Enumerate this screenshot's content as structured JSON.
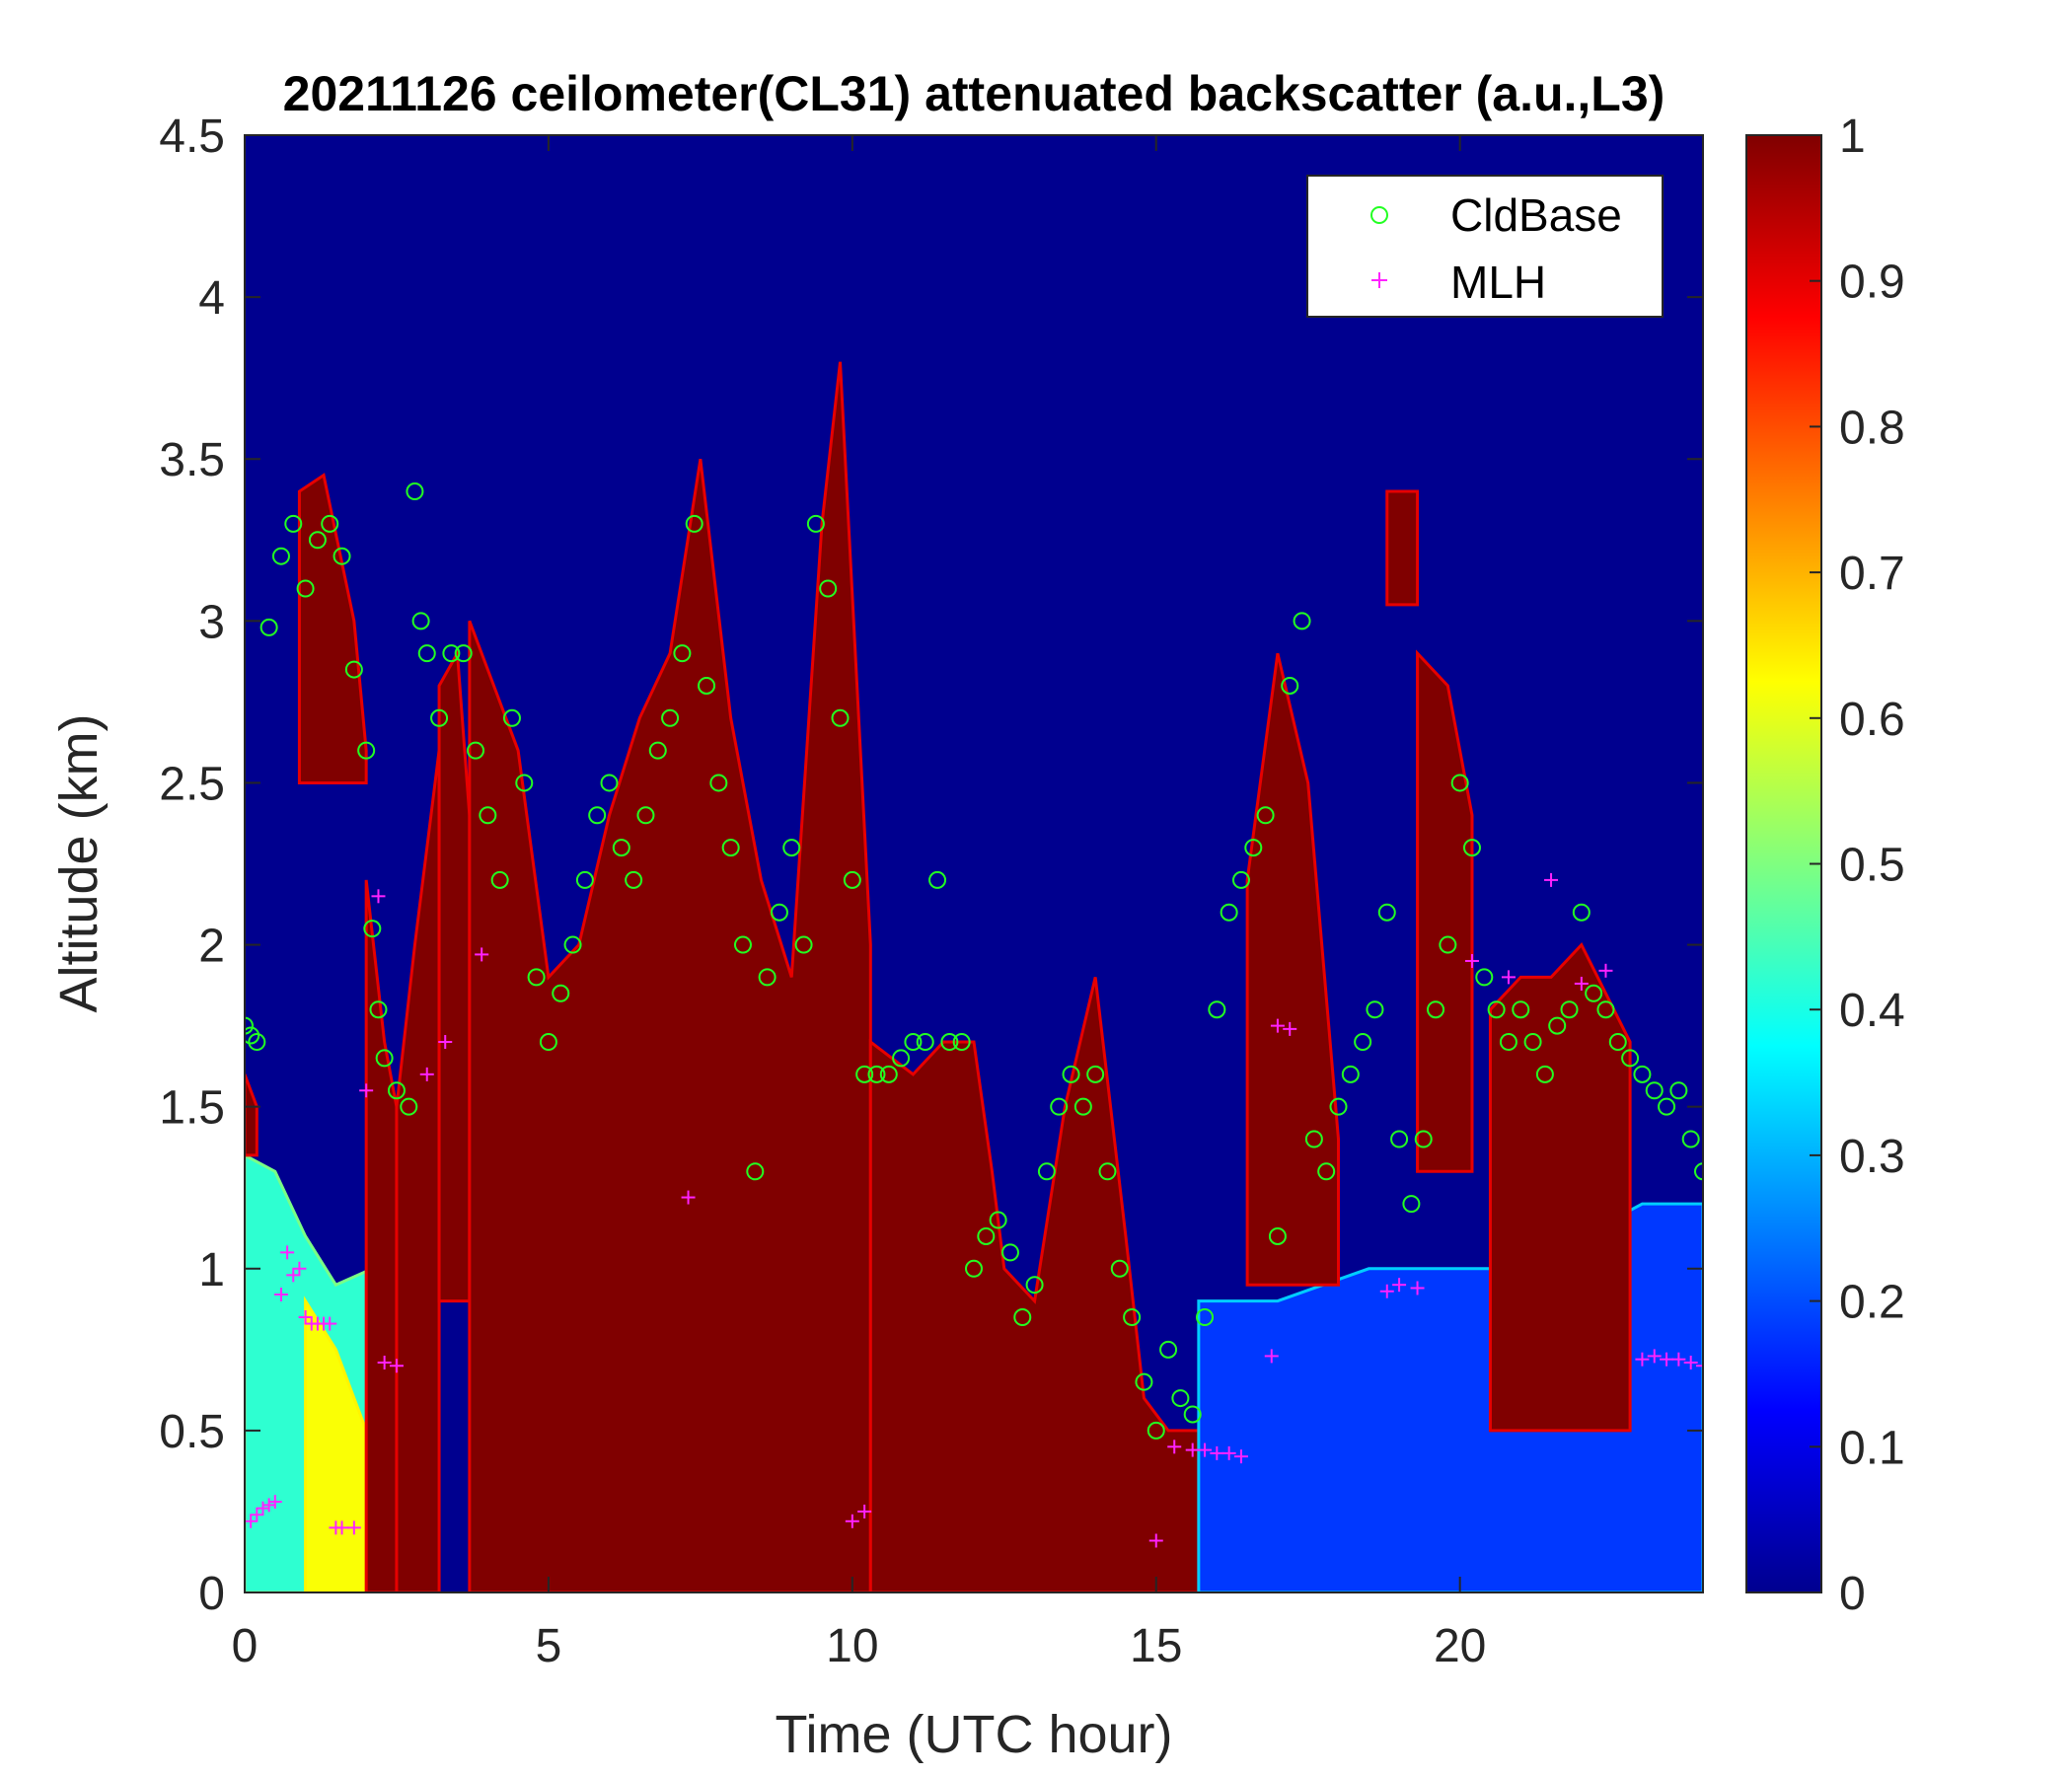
{
  "chart_data": {
    "type": "heatmap",
    "title": "20211126 ceilometer(CL31) attenuated backscatter (a.u.,L3)",
    "xlabel": "Time (UTC hour)",
    "ylabel": "Altitude (km)",
    "xlim": [
      0,
      24
    ],
    "ylim": [
      0,
      4.5
    ],
    "x_ticks": [
      "0",
      "5",
      "10",
      "15",
      "20"
    ],
    "x_tick_values": [
      0,
      5,
      10,
      15,
      20
    ],
    "y_ticks": [
      "0",
      "0.5",
      "1",
      "1.5",
      "2",
      "2.5",
      "3",
      "3.5",
      "4",
      "4.5"
    ],
    "y_tick_values": [
      0,
      0.5,
      1,
      1.5,
      2,
      2.5,
      3,
      3.5,
      4,
      4.5
    ],
    "colorbar": {
      "colormap": "jet",
      "range": [
        0,
        1
      ],
      "ticks": [
        "0",
        "0.1",
        "0.2",
        "0.3",
        "0.4",
        "0.5",
        "0.6",
        "0.7",
        "0.8",
        "0.9",
        "1"
      ],
      "tick_values": [
        0,
        0.1,
        0.2,
        0.3,
        0.4,
        0.5,
        0.6,
        0.7,
        0.8,
        0.9,
        1
      ]
    },
    "legend": {
      "placement": "top-right",
      "entries": [
        {
          "label": "CldBase",
          "marker": "circle",
          "color": "#22ff22"
        },
        {
          "label": "MLH",
          "marker": "plus",
          "color": "#ff22ff"
        }
      ]
    },
    "background_value": 0.0,
    "backscatter_regions": [
      {
        "value": 0.42,
        "t_start": 0.0,
        "t_end": 2.1,
        "profile": [
          [
            0,
            1.35
          ],
          [
            0.5,
            1.3
          ],
          [
            1,
            1.1
          ],
          [
            1.5,
            0.95
          ],
          [
            2.1,
            1.0
          ]
        ]
      },
      {
        "value": 1.0,
        "t_start": 0.0,
        "t_end": 0.2,
        "profile": [
          [
            0,
            1.6
          ],
          [
            0.2,
            1.5
          ]
        ],
        "base": 1.35
      },
      {
        "value": 0.62,
        "t_start": 1.0,
        "t_end": 2.0,
        "profile": [
          [
            1.0,
            0.9
          ],
          [
            1.5,
            0.75
          ],
          [
            2.0,
            0.5
          ]
        ]
      },
      {
        "value": 1.0,
        "t_start": 0.9,
        "t_end": 2.0,
        "profile": [
          [
            0.9,
            3.4
          ],
          [
            1.3,
            3.45
          ],
          [
            1.8,
            3.0
          ],
          [
            2.0,
            2.6
          ]
        ],
        "base": 2.5
      },
      {
        "value": 1.0,
        "t_start": 2.0,
        "t_end": 2.5,
        "profile": [
          [
            2.0,
            2.2
          ],
          [
            2.3,
            1.7
          ],
          [
            2.5,
            1.5
          ]
        ]
      },
      {
        "value": 1.0,
        "t_start": 2.5,
        "t_end": 3.2,
        "profile": [
          [
            2.5,
            1.5
          ],
          [
            2.8,
            2.0
          ],
          [
            3.2,
            2.6
          ]
        ]
      },
      {
        "value": 1.0,
        "t_start": 3.2,
        "t_end": 3.7,
        "profile": [
          [
            3.2,
            2.8
          ],
          [
            3.5,
            2.9
          ],
          [
            3.7,
            2.4
          ]
        ],
        "base": 0.9
      },
      {
        "value": 1.0,
        "t_start": 3.7,
        "t_end": 10.3,
        "profile": [
          [
            3.7,
            3.0
          ],
          [
            4.5,
            2.6
          ],
          [
            5,
            1.9
          ],
          [
            5.5,
            2.0
          ],
          [
            6,
            2.4
          ],
          [
            6.5,
            2.7
          ],
          [
            7,
            2.9
          ],
          [
            7.5,
            3.5
          ],
          [
            8,
            2.7
          ],
          [
            8.5,
            2.2
          ],
          [
            9,
            1.9
          ],
          [
            9.5,
            3.3
          ],
          [
            9.8,
            3.8
          ],
          [
            10.3,
            2.0
          ]
        ]
      },
      {
        "value": 1.0,
        "t_start": 10.3,
        "t_end": 15.7,
        "profile": [
          [
            10.3,
            1.7
          ],
          [
            11,
            1.6
          ],
          [
            11.5,
            1.7
          ],
          [
            12,
            1.7
          ],
          [
            12.3,
            1.3
          ],
          [
            12.5,
            1.0
          ],
          [
            13,
            0.9
          ],
          [
            13.5,
            1.5
          ],
          [
            14,
            1.9
          ],
          [
            14.5,
            1.1
          ],
          [
            14.8,
            0.6
          ],
          [
            15.2,
            0.5
          ],
          [
            15.7,
            0.5
          ]
        ]
      },
      {
        "value": 0.18,
        "t_start": 15.7,
        "t_end": 24.0,
        "profile": [
          [
            15.7,
            0.9
          ],
          [
            17,
            0.9
          ],
          [
            18.5,
            1.0
          ],
          [
            20,
            1.0
          ],
          [
            21,
            1.0
          ],
          [
            22,
            1.1
          ],
          [
            23,
            1.2
          ],
          [
            24,
            1.2
          ]
        ]
      },
      {
        "value": 1.0,
        "t_start": 16.5,
        "t_end": 18.0,
        "profile": [
          [
            16.5,
            2.2
          ],
          [
            17.0,
            2.9
          ],
          [
            17.5,
            2.5
          ],
          [
            18.0,
            1.4
          ]
        ],
        "base": 0.95
      },
      {
        "value": 1.0,
        "t_start": 18.8,
        "t_end": 19.3,
        "profile": [
          [
            18.8,
            3.4
          ],
          [
            19.3,
            3.4
          ]
        ],
        "base": 3.05
      },
      {
        "value": 1.0,
        "t_start": 19.3,
        "t_end": 20.2,
        "profile": [
          [
            19.3,
            2.9
          ],
          [
            19.8,
            2.8
          ],
          [
            20.2,
            2.4
          ]
        ],
        "base": 1.3
      },
      {
        "value": 1.0,
        "t_start": 20.5,
        "t_end": 22.8,
        "profile": [
          [
            20.5,
            1.8
          ],
          [
            21,
            1.9
          ],
          [
            21.5,
            1.9
          ],
          [
            22,
            2.0
          ],
          [
            22.8,
            1.7
          ]
        ],
        "base": 0.5
      }
    ],
    "series": [
      {
        "name": "CldBase",
        "marker": "circle",
        "color": "#22ff22",
        "x": [
          0.0,
          0.1,
          0.2,
          0.4,
          0.6,
          0.8,
          1.0,
          1.2,
          1.4,
          1.6,
          1.8,
          2.0,
          2.1,
          2.2,
          2.3,
          2.5,
          2.7,
          2.8,
          2.9,
          3.0,
          3.2,
          3.4,
          3.6,
          3.8,
          4.0,
          4.2,
          4.4,
          4.6,
          4.8,
          5.0,
          5.2,
          5.4,
          5.6,
          5.8,
          6.0,
          6.2,
          6.4,
          6.6,
          6.8,
          7.0,
          7.2,
          7.4,
          7.6,
          7.8,
          8.0,
          8.2,
          8.4,
          8.6,
          8.8,
          9.0,
          9.2,
          9.4,
          9.6,
          9.8,
          10.0,
          10.2,
          10.4,
          10.6,
          10.8,
          11.0,
          11.2,
          11.4,
          11.6,
          11.8,
          12.0,
          12.2,
          12.4,
          12.6,
          12.8,
          13.0,
          13.2,
          13.4,
          13.6,
          13.8,
          14.0,
          14.2,
          14.4,
          14.6,
          14.8,
          15.0,
          15.2,
          15.4,
          15.6,
          15.8,
          16.0,
          16.2,
          16.4,
          16.6,
          16.8,
          17.0,
          17.2,
          17.4,
          17.6,
          17.8,
          18.0,
          18.2,
          18.4,
          18.6,
          18.8,
          19.0,
          19.2,
          19.4,
          19.6,
          19.8,
          20.0,
          20.2,
          20.4,
          20.6,
          20.8,
          21.0,
          21.2,
          21.4,
          21.6,
          21.8,
          22.0,
          22.2,
          22.4,
          22.6,
          22.8,
          23.0,
          23.2,
          23.4,
          23.6,
          23.8,
          24.0
        ],
        "y": [
          1.75,
          1.72,
          1.7,
          2.98,
          3.2,
          3.3,
          3.1,
          3.25,
          3.3,
          3.2,
          2.85,
          2.6,
          2.05,
          1.8,
          1.65,
          1.55,
          1.5,
          3.4,
          3.0,
          2.9,
          2.7,
          2.9,
          2.9,
          2.6,
          2.4,
          2.2,
          2.7,
          2.5,
          1.9,
          1.7,
          1.85,
          2.0,
          2.2,
          2.4,
          2.5,
          2.3,
          2.2,
          2.4,
          2.6,
          2.7,
          2.9,
          3.3,
          2.8,
          2.5,
          2.3,
          2.0,
          1.3,
          1.9,
          2.1,
          2.3,
          2.0,
          3.3,
          3.1,
          2.7,
          2.2,
          1.6,
          1.6,
          1.6,
          1.65,
          1.7,
          1.7,
          2.2,
          1.7,
          1.7,
          1.0,
          1.1,
          1.15,
          1.05,
          0.85,
          0.95,
          1.3,
          1.5,
          1.6,
          1.5,
          1.6,
          1.3,
          1.0,
          0.85,
          0.65,
          0.5,
          0.75,
          0.6,
          0.55,
          0.85,
          1.8,
          2.1,
          2.2,
          2.3,
          2.4,
          1.1,
          2.8,
          3.0,
          1.4,
          1.3,
          1.5,
          1.6,
          1.7,
          1.8,
          2.1,
          1.4,
          1.2,
          1.4,
          1.8,
          2.0,
          2.5,
          2.3,
          1.9,
          1.8,
          1.7,
          1.8,
          1.7,
          1.6,
          1.75,
          1.8,
          2.1,
          1.85,
          1.8,
          1.7,
          1.65,
          1.6,
          1.55,
          1.5,
          1.55,
          1.4,
          1.3
        ]
      },
      {
        "name": "MLH",
        "marker": "plus",
        "color": "#ff22ff",
        "x": [
          0.1,
          0.2,
          0.3,
          0.4,
          0.5,
          0.6,
          0.7,
          0.8,
          0.9,
          1.0,
          1.1,
          1.2,
          1.3,
          1.4,
          1.5,
          1.6,
          1.8,
          2.0,
          2.2,
          2.3,
          2.5,
          3.0,
          3.3,
          3.9,
          7.3,
          10.0,
          10.2,
          15.0,
          15.3,
          15.6,
          15.8,
          16.0,
          16.2,
          16.4,
          16.9,
          17.0,
          17.2,
          18.8,
          19.0,
          19.3,
          20.2,
          20.8,
          21.5,
          22.0,
          22.4,
          23.0,
          23.2,
          23.4,
          23.6,
          23.8,
          24.0
        ],
        "y": [
          0.22,
          0.24,
          0.26,
          0.27,
          0.28,
          0.92,
          1.05,
          0.98,
          1.0,
          0.85,
          0.83,
          0.83,
          0.83,
          0.83,
          0.2,
          0.2,
          0.2,
          1.55,
          2.15,
          0.71,
          0.7,
          1.6,
          1.7,
          1.97,
          1.22,
          0.22,
          0.25,
          0.16,
          0.45,
          0.44,
          0.44,
          0.43,
          0.43,
          0.42,
          0.73,
          1.75,
          1.74,
          0.93,
          0.95,
          0.94,
          1.95,
          1.9,
          2.2,
          1.88,
          1.92,
          0.72,
          0.73,
          0.72,
          0.72,
          0.71,
          0.7
        ]
      }
    ]
  }
}
